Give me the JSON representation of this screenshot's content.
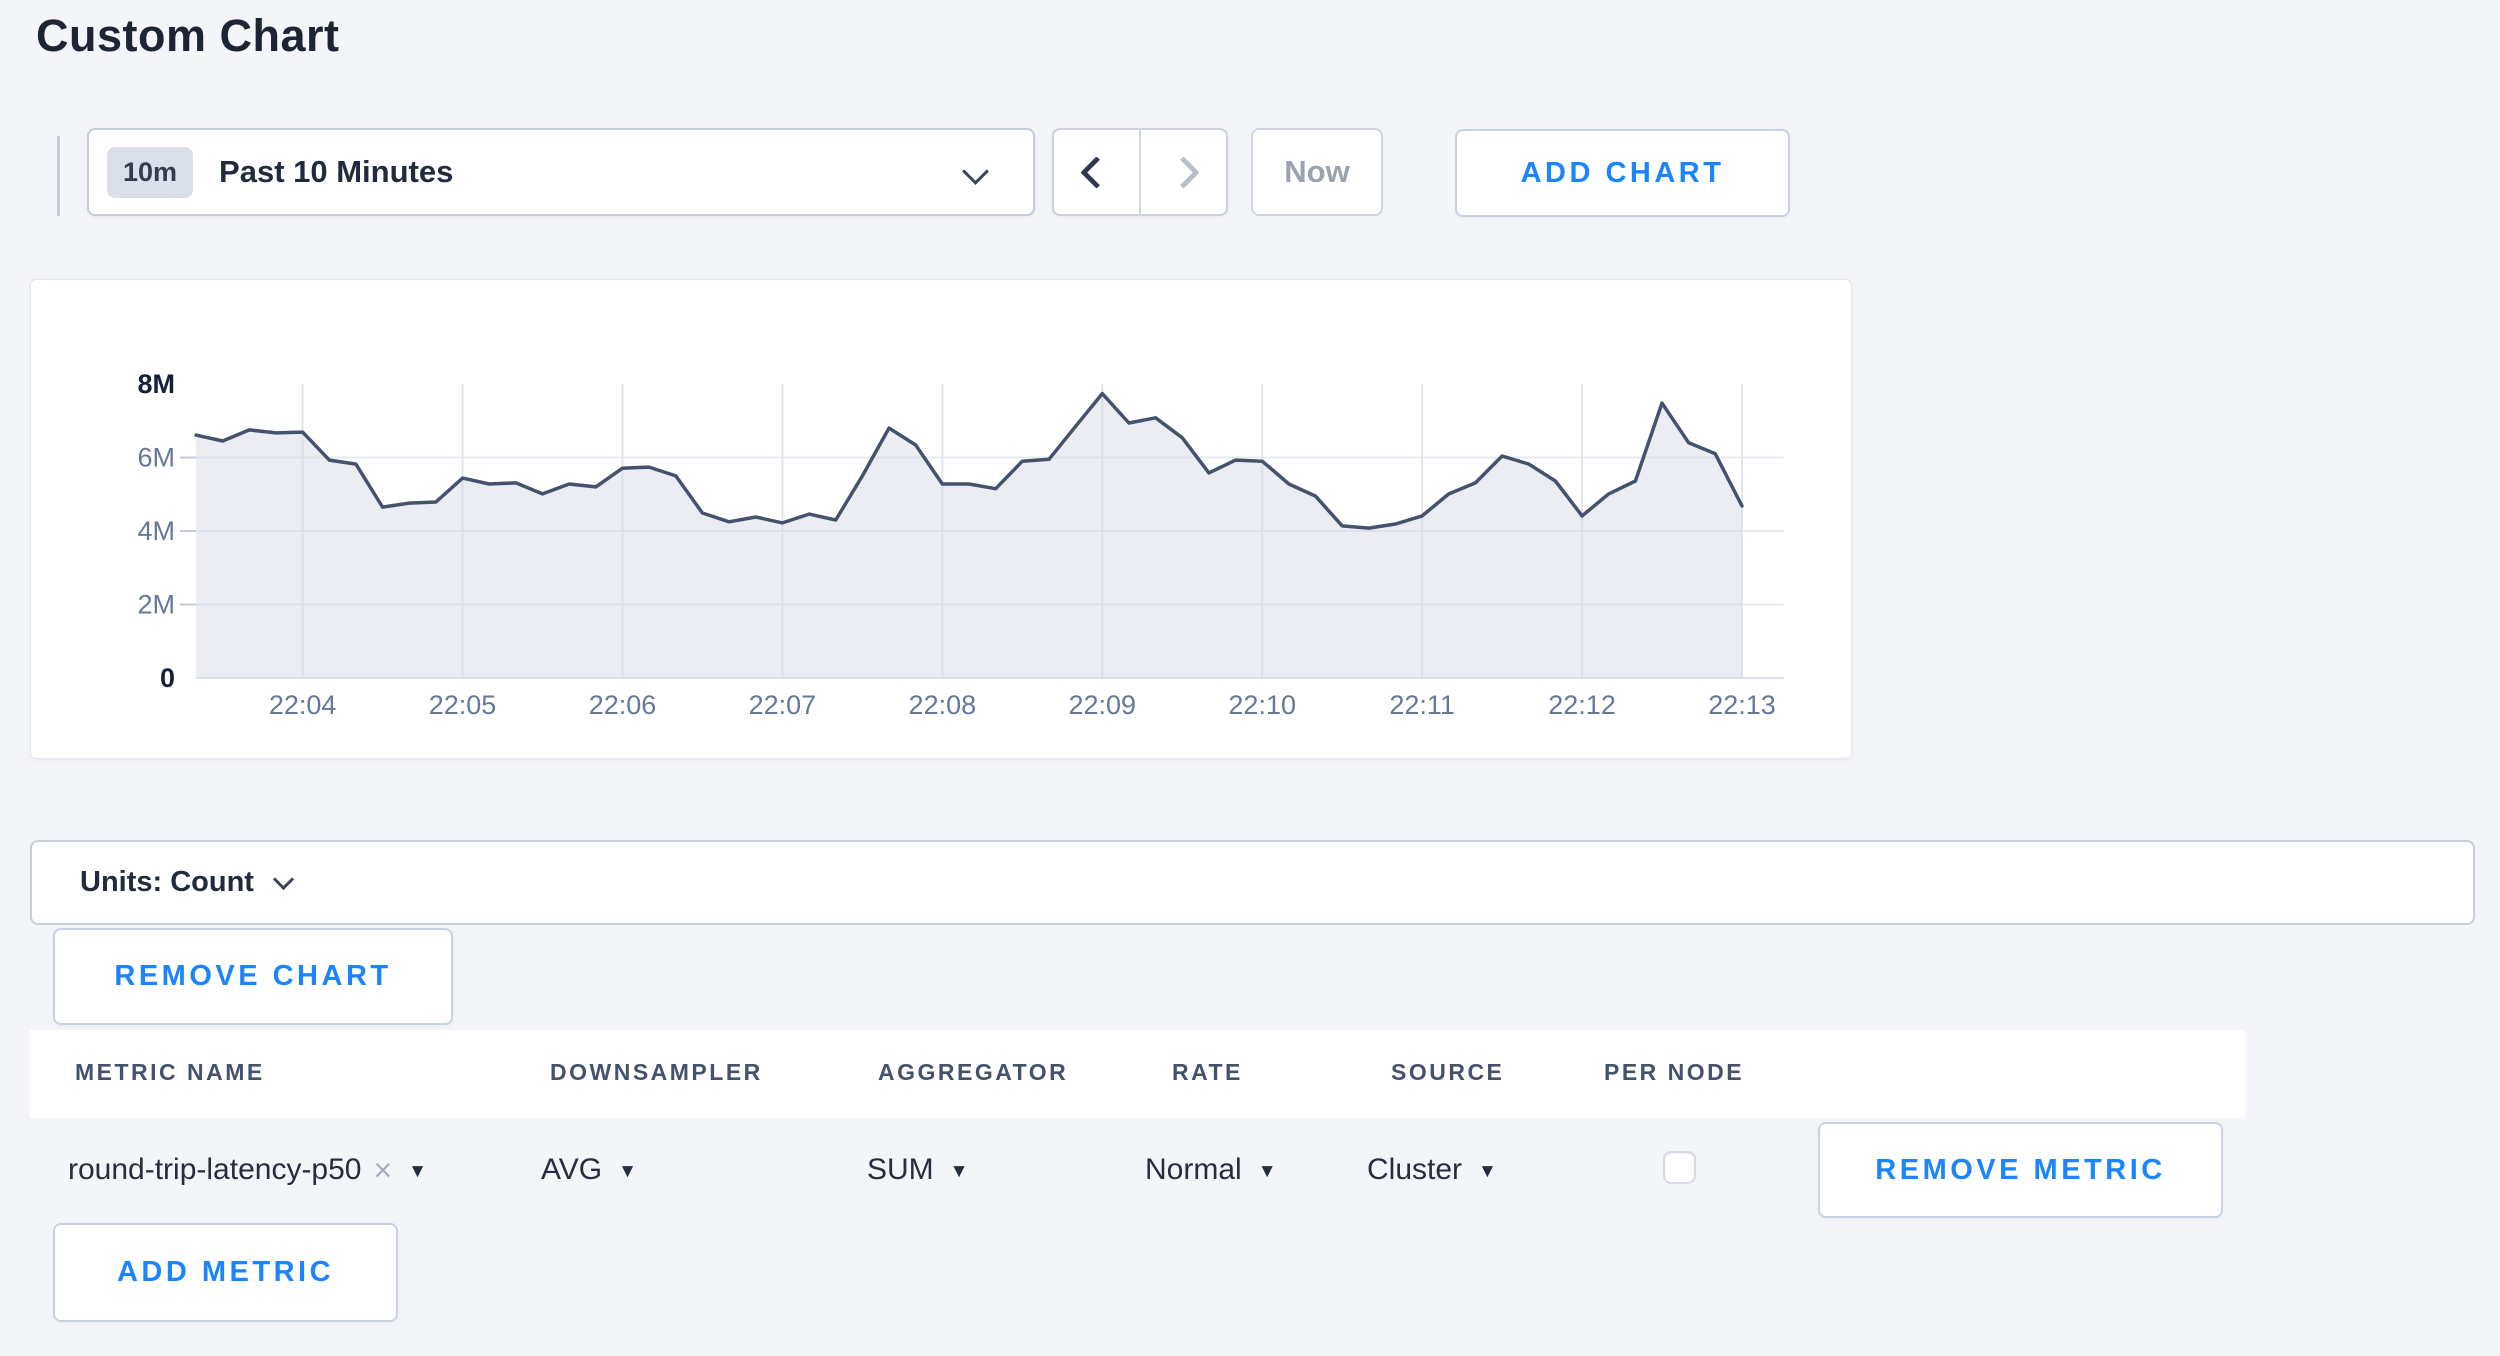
{
  "page": {
    "title": "Custom Chart"
  },
  "colors": {
    "accent_blue": "#1a85ff",
    "page_background": "#f4f5f9",
    "chart_line": "#44526e",
    "chart_fill": "#e9ebf2",
    "dark_text": "#222b3e",
    "muted_text": "#66789a"
  },
  "toolbar": {
    "range_badge": "10m",
    "range_label": "Past 10 Minutes",
    "now_label": "Now",
    "add_chart_label": "ADD CHART"
  },
  "chart_data": {
    "type": "area",
    "title": "",
    "xlabel": "",
    "ylabel": "",
    "unit": "count",
    "grid": true,
    "legend_position": "none",
    "ylim_millions": [
      0,
      8
    ],
    "yticks": [
      "0",
      "2M",
      "4M",
      "6M",
      "8M"
    ],
    "yticks_millions": [
      0,
      2,
      4,
      6,
      8
    ],
    "xticks": [
      "22:04",
      "22:05",
      "22:06",
      "22:07",
      "22:08",
      "22:09",
      "22:10",
      "22:11",
      "22:12",
      "22:13"
    ],
    "x": [
      "22:03:20",
      "22:03:30",
      "22:03:40",
      "22:03:50",
      "22:04:00",
      "22:04:10",
      "22:04:20",
      "22:04:30",
      "22:04:40",
      "22:04:50",
      "22:05:00",
      "22:05:10",
      "22:05:20",
      "22:05:30",
      "22:05:40",
      "22:05:50",
      "22:06:00",
      "22:06:10",
      "22:06:20",
      "22:06:30",
      "22:06:40",
      "22:06:50",
      "22:07:00",
      "22:07:10",
      "22:07:20",
      "22:07:30",
      "22:07:40",
      "22:07:50",
      "22:08:00",
      "22:08:10",
      "22:08:20",
      "22:08:30",
      "22:08:40",
      "22:08:50",
      "22:09:00",
      "22:09:10",
      "22:09:20",
      "22:09:30",
      "22:09:40",
      "22:09:50",
      "22:10:00",
      "22:10:10",
      "22:10:20",
      "22:10:30",
      "22:10:40",
      "22:10:50",
      "22:11:00",
      "22:11:10",
      "22:11:20",
      "22:11:30",
      "22:11:40",
      "22:11:50",
      "22:12:00",
      "22:12:10",
      "22:12:20",
      "22:12:30",
      "22:12:40",
      "22:12:50",
      "22:13:00"
    ],
    "series": [
      {
        "name": "round-trip-latency-p50",
        "values_millions": [
          6.61,
          6.45,
          6.75,
          6.67,
          6.69,
          5.93,
          5.82,
          4.65,
          4.76,
          4.79,
          5.44,
          5.28,
          5.31,
          5.01,
          5.28,
          5.2,
          5.71,
          5.74,
          5.5,
          4.49,
          4.25,
          4.38,
          4.22,
          4.46,
          4.3,
          5.5,
          6.8,
          6.34,
          5.28,
          5.28,
          5.15,
          5.9,
          5.95,
          6.85,
          7.74,
          6.94,
          7.08,
          6.54,
          5.58,
          5.93,
          5.9,
          5.28,
          4.95,
          4.14,
          4.08,
          4.19,
          4.41,
          5.01,
          5.31,
          6.04,
          5.82,
          5.36,
          4.41,
          5.01,
          5.36,
          7.48,
          6.4,
          6.1,
          4.68
        ]
      }
    ]
  },
  "units_bar": {
    "label": "Units: Count"
  },
  "buttons": {
    "remove_chart": "REMOVE CHART",
    "remove_metric": "REMOVE METRIC",
    "add_metric": "ADD METRIC"
  },
  "icons": {
    "caret_down": "▼",
    "remove": "×"
  },
  "metrics_table": {
    "columns": [
      "METRIC NAME",
      "DOWNSAMPLER",
      "AGGREGATOR",
      "RATE",
      "SOURCE",
      "PER NODE"
    ],
    "rows": [
      {
        "metric_name": "round-trip-latency-p50",
        "downsampler": "AVG",
        "aggregator": "SUM",
        "rate": "Normal",
        "source": "Cluster",
        "per_node_checked": false
      }
    ]
  }
}
